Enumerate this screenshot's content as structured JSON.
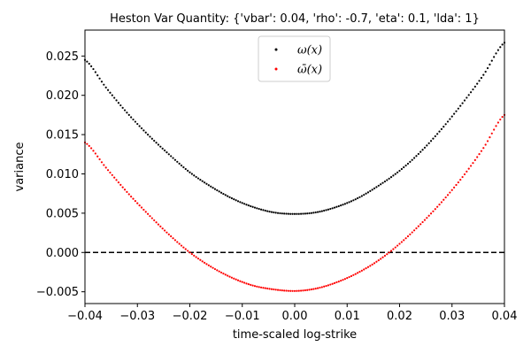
{
  "chart_data": {
    "type": "scatter",
    "title": "Heston Var Quantity: {'vbar': 0.04, 'rho': -0.7, 'eta': 0.1, 'lda': 1}",
    "xlabel": "time-scaled log-strike",
    "ylabel": "variance",
    "xlim": [
      -0.04,
      0.04
    ],
    "ylim": [
      -0.0065,
      0.0283
    ],
    "x_ticks": [
      -0.04,
      -0.03,
      -0.02,
      -0.01,
      0.0,
      0.01,
      0.02,
      0.03,
      0.04
    ],
    "x_tick_labels": [
      "−0.04",
      "−0.03",
      "−0.02",
      "−0.01",
      "0.00",
      "0.01",
      "0.02",
      "0.03",
      "0.04"
    ],
    "y_ticks": [
      -0.005,
      0.0,
      0.005,
      0.01,
      0.015,
      0.02,
      0.025
    ],
    "y_tick_labels": [
      "−0.005",
      "0.000",
      "0.005",
      "0.010",
      "0.015",
      "0.020",
      "0.025"
    ],
    "grid": false,
    "legend_position": "upper-center",
    "reference_line": {
      "y": 0.0,
      "style": "dashed",
      "color": "#000000"
    },
    "series": [
      {
        "name": "ω(x)",
        "color": "#000000",
        "x": [
          -0.04,
          -0.036,
          -0.032,
          -0.028,
          -0.024,
          -0.02,
          -0.016,
          -0.012,
          -0.008,
          -0.004,
          0.0,
          0.004,
          0.008,
          0.012,
          0.016,
          0.02,
          0.024,
          0.028,
          0.032,
          0.036,
          0.04
        ],
        "values": [
          0.0245,
          0.021,
          0.0178,
          0.015,
          0.0125,
          0.0102,
          0.0084,
          0.0069,
          0.0058,
          0.0051,
          0.0049,
          0.0051,
          0.0058,
          0.0069,
          0.0085,
          0.0104,
          0.0128,
          0.0157,
          0.019,
          0.0226,
          0.0267
        ]
      },
      {
        "name": "ω̄(x)",
        "color": "#ff0000",
        "x": [
          -0.04,
          -0.036,
          -0.032,
          -0.028,
          -0.024,
          -0.02,
          -0.016,
          -0.012,
          -0.008,
          -0.004,
          0.0,
          0.004,
          0.008,
          0.012,
          0.016,
          0.02,
          0.024,
          0.028,
          0.032,
          0.036,
          0.04
        ],
        "values": [
          0.014,
          0.0108,
          0.0077,
          0.0049,
          0.0023,
          0.0,
          -0.0018,
          -0.0032,
          -0.0042,
          -0.0047,
          -0.0049,
          -0.0046,
          -0.0038,
          -0.0026,
          -0.001,
          0.0011,
          0.0036,
          0.0064,
          0.0096,
          0.0133,
          0.0175
        ]
      }
    ]
  }
}
